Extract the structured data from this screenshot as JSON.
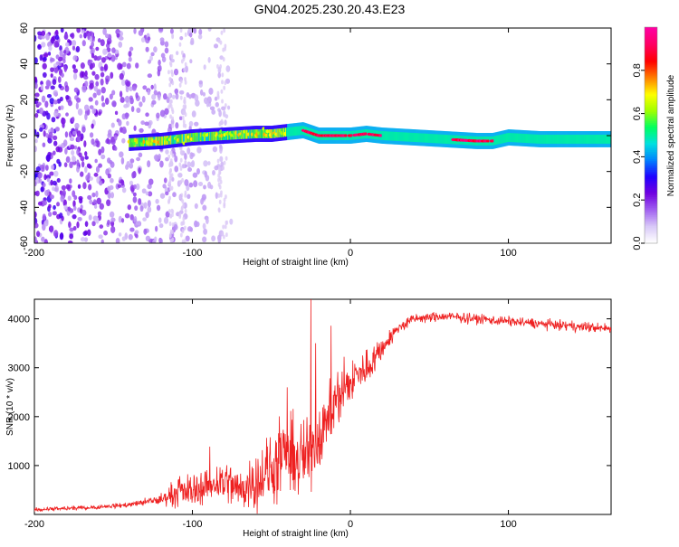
{
  "title": "GN04.2025.230.20.43.E23",
  "chart_data": [
    {
      "type": "heatmap",
      "xlabel": "Height of straight line (km)",
      "ylabel": "Frequency (Hz)",
      "xlim": [
        -200,
        165
      ],
      "ylim": [
        -60,
        60
      ],
      "xticks": [
        -200,
        -100,
        0,
        100
      ],
      "yticks": [
        -60,
        -40,
        -20,
        0,
        20,
        40,
        60
      ],
      "colorbar": {
        "label": "Normalized spectral amplitude",
        "range": [
          0,
          1
        ],
        "ticks": [
          "0.0",
          "0.2",
          "0.4",
          "0.6",
          "0.8"
        ],
        "colormap": [
          "#ffffff",
          "#d8c8f8",
          "#a060f0",
          "#7000e0",
          "#2000ff",
          "#0080ff",
          "#00e0e0",
          "#00ff60",
          "#a0ff00",
          "#ffff00",
          "#ff8000",
          "#ff0000",
          "#ff0060",
          "#ff00a0"
        ]
      },
      "noise_region": {
        "x_from": -200,
        "x_to": -75,
        "freq_spread": 60
      },
      "ridge": {
        "description_points_x": [
          -140,
          -120,
          -100,
          -80,
          -60,
          -50,
          -40,
          -30,
          -20,
          -10,
          0,
          10,
          20,
          40,
          60,
          80,
          90,
          100,
          120,
          140,
          165
        ],
        "description_points_freq": [
          -4,
          -3,
          -1,
          0,
          1,
          1,
          2,
          3,
          0,
          0,
          0,
          1,
          0,
          -1,
          -2,
          -3,
          -3,
          -1,
          -2,
          -2,
          -2
        ],
        "peak_amplitude_x_range": [
          -30,
          20
        ]
      }
    },
    {
      "type": "line",
      "xlabel": "Height of straight line (km)",
      "ylabel": "SNR (10 * v/v)",
      "xlim": [
        -200,
        165
      ],
      "ylim": [
        0,
        4400
      ],
      "xticks": [
        -200,
        -100,
        0,
        100
      ],
      "yticks": [
        1000,
        2000,
        3000,
        4000
      ],
      "series": [
        {
          "color": "#ee2020",
          "x": [
            -200,
            -180,
            -160,
            -140,
            -120,
            -110,
            -100,
            -90,
            -80,
            -70,
            -60,
            -50,
            -40,
            -30,
            -26,
            -20,
            -10,
            0,
            10,
            20,
            30,
            40,
            60,
            80,
            100,
            120,
            140,
            165
          ],
          "y": [
            100,
            120,
            150,
            200,
            300,
            450,
            500,
            600,
            700,
            500,
            700,
            900,
            1200,
            1100,
            1300,
            1600,
            2300,
            2700,
            3000,
            3400,
            3800,
            4000,
            4050,
            4000,
            3950,
            3900,
            3850,
            3800
          ],
          "noise_amplitude": [
            60,
            60,
            60,
            80,
            150,
            300,
            350,
            400,
            500,
            450,
            600,
            800,
            900,
            800,
            900,
            700,
            600,
            500,
            400,
            300,
            200,
            150,
            150,
            150,
            150,
            150,
            150,
            150
          ],
          "spikes": [
            {
              "x": -25,
              "y": 4400
            },
            {
              "x": -22,
              "y": 3500
            },
            {
              "x": -40,
              "y": 2600
            }
          ]
        }
      ]
    }
  ]
}
